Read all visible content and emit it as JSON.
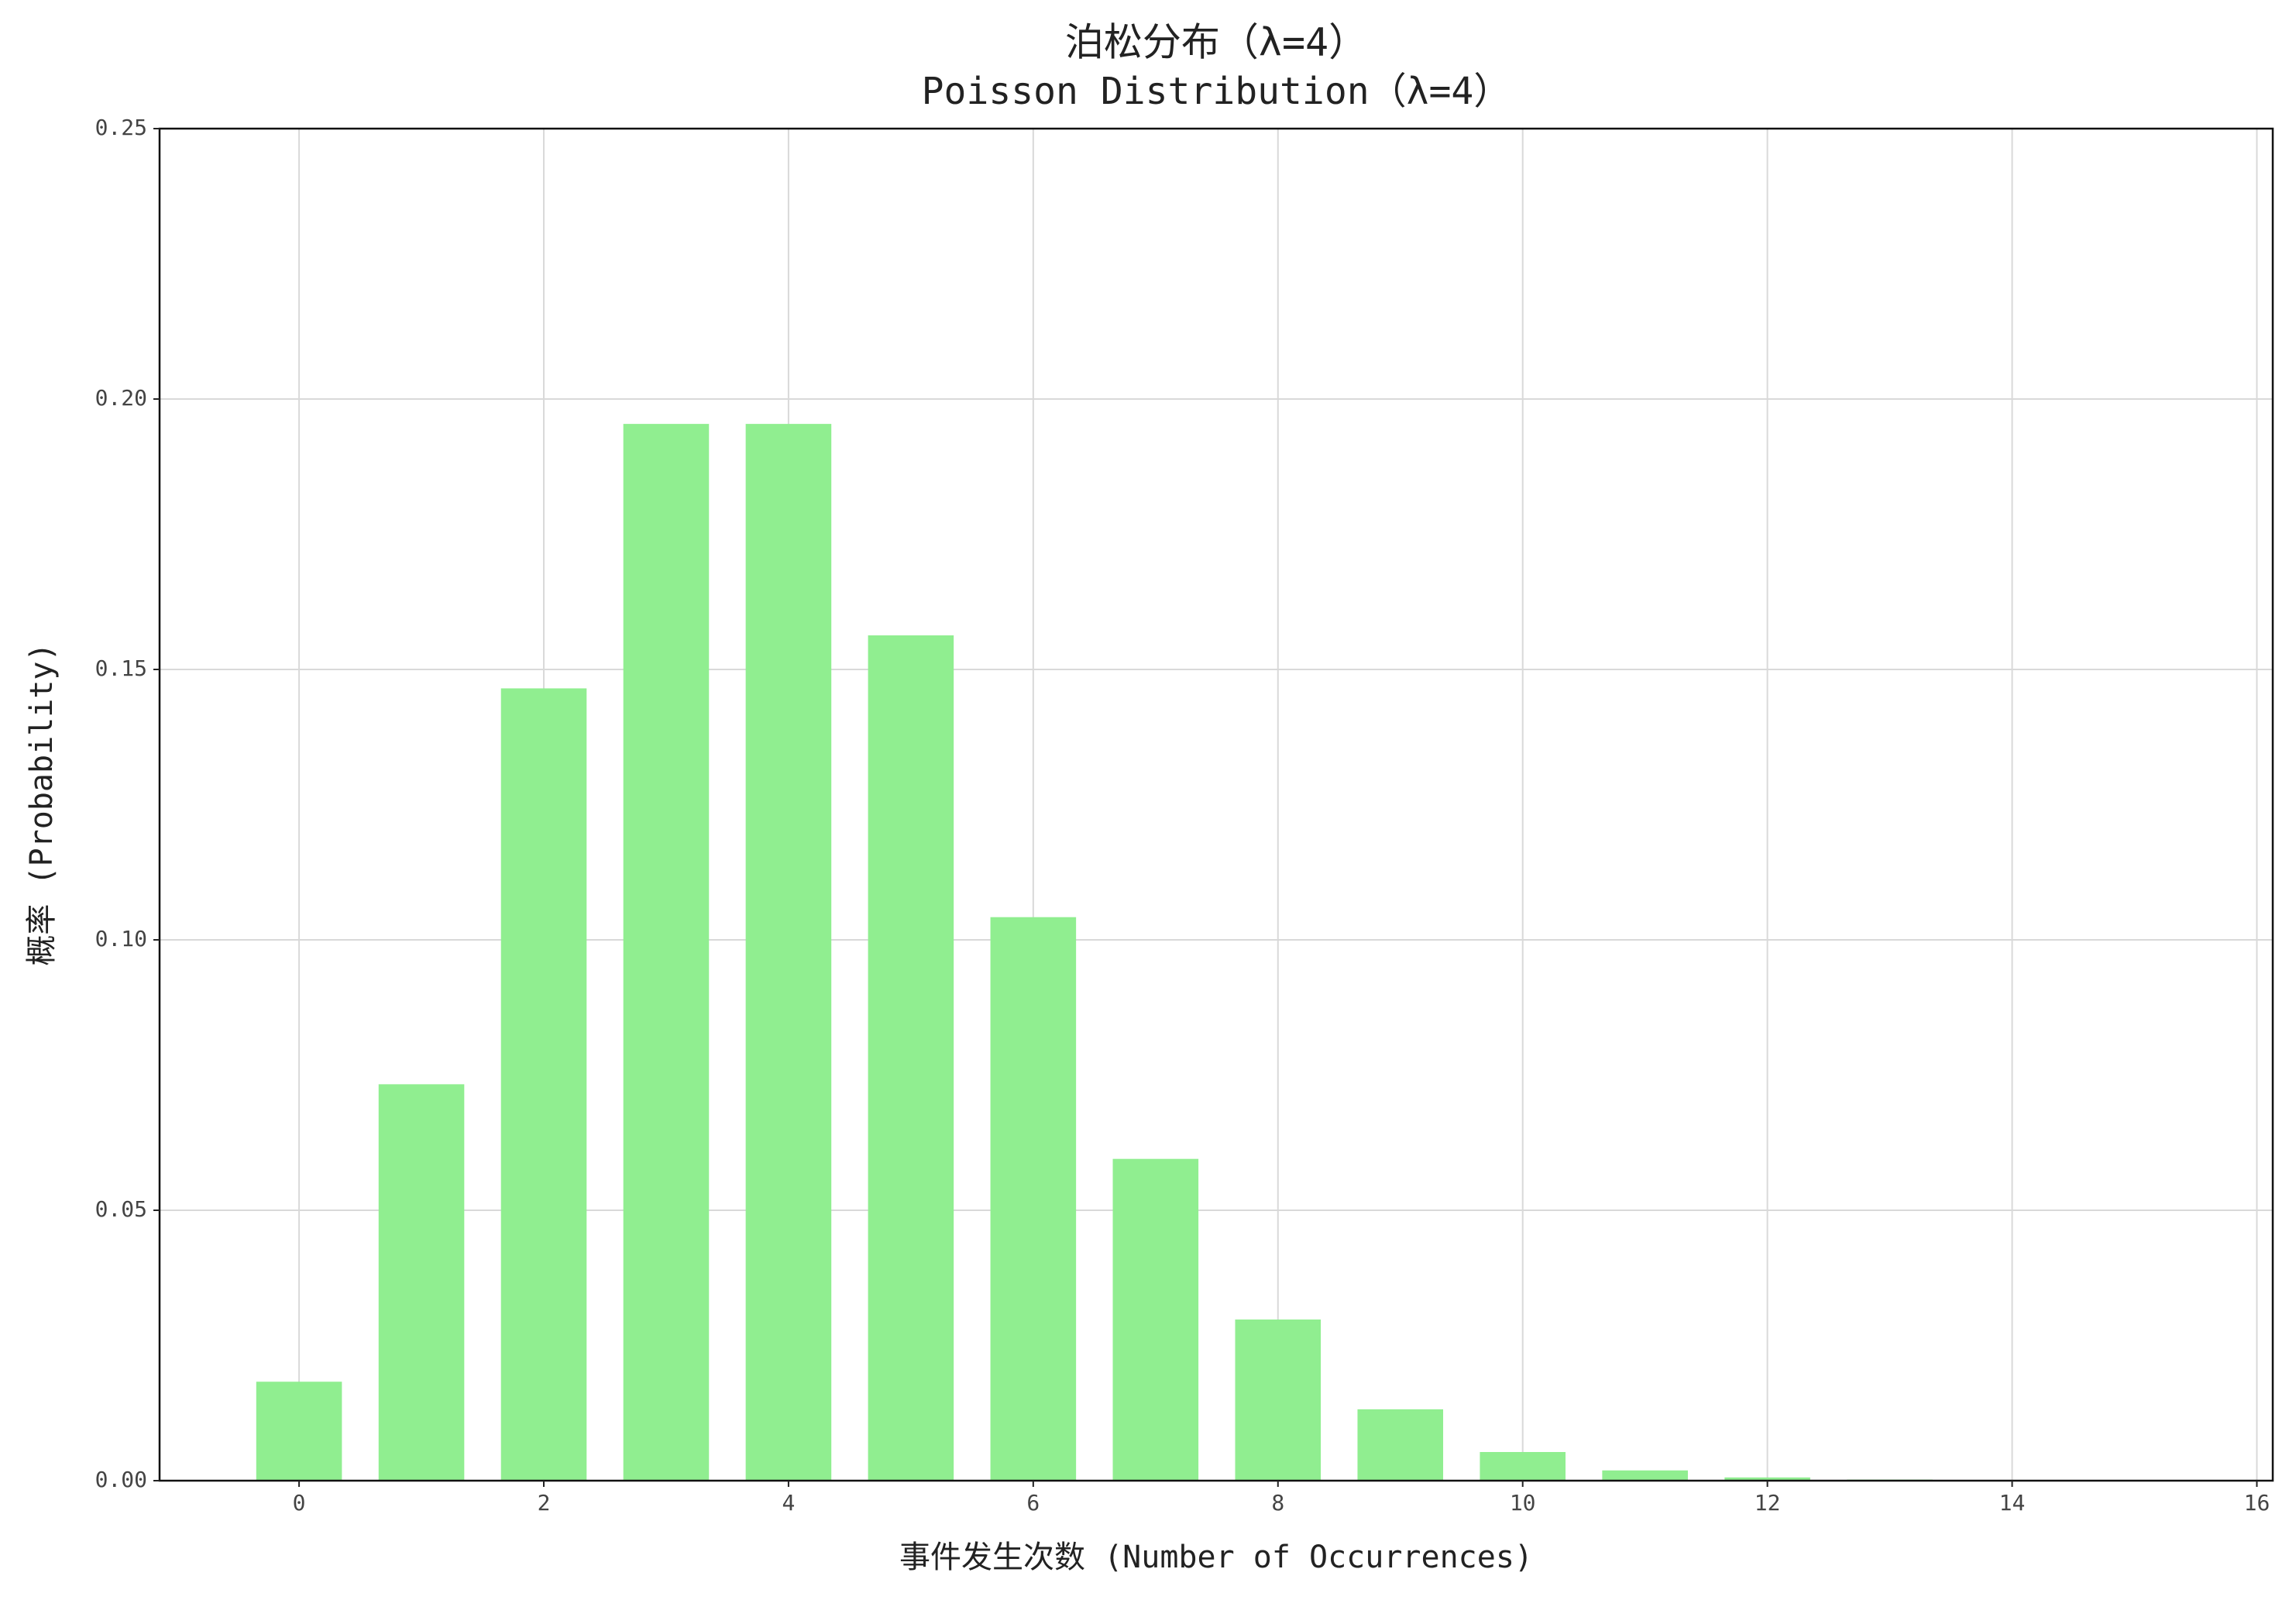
{
  "chart_data": {
    "type": "bar",
    "title": "泊松分布（λ=4）",
    "subtitle": "Poisson Distribution（λ=4）",
    "x_label": "事件发生次数 (Number of Occurrences)",
    "y_label": "概率 (Probability)",
    "x": [
      0,
      1,
      2,
      3,
      4,
      5,
      6,
      7,
      8,
      9,
      10,
      11,
      12,
      13,
      14,
      15
    ],
    "values": [
      0.0183,
      0.0733,
      0.1465,
      0.1954,
      0.1954,
      0.1563,
      0.1042,
      0.0595,
      0.0298,
      0.0132,
      0.0053,
      0.0019,
      0.0006,
      0.0002,
      5e-05,
      1e-05
    ],
    "color": "#90ee90",
    "xlim": [
      -1.14,
      16.13
    ],
    "xticks": [
      0,
      2,
      4,
      6,
      8,
      10,
      12,
      14,
      16
    ],
    "ylim": [
      0,
      0.25
    ],
    "yticks": [
      {
        "value": 0,
        "label": "0.00"
      },
      {
        "value": 0.05,
        "label": "0.05"
      },
      {
        "value": 0.1,
        "label": "0.10"
      },
      {
        "value": 0.15,
        "label": "0.15"
      },
      {
        "value": 0.2,
        "label": "0.20"
      },
      {
        "value": 0.25,
        "label": "0.25"
      }
    ],
    "grid": true
  }
}
